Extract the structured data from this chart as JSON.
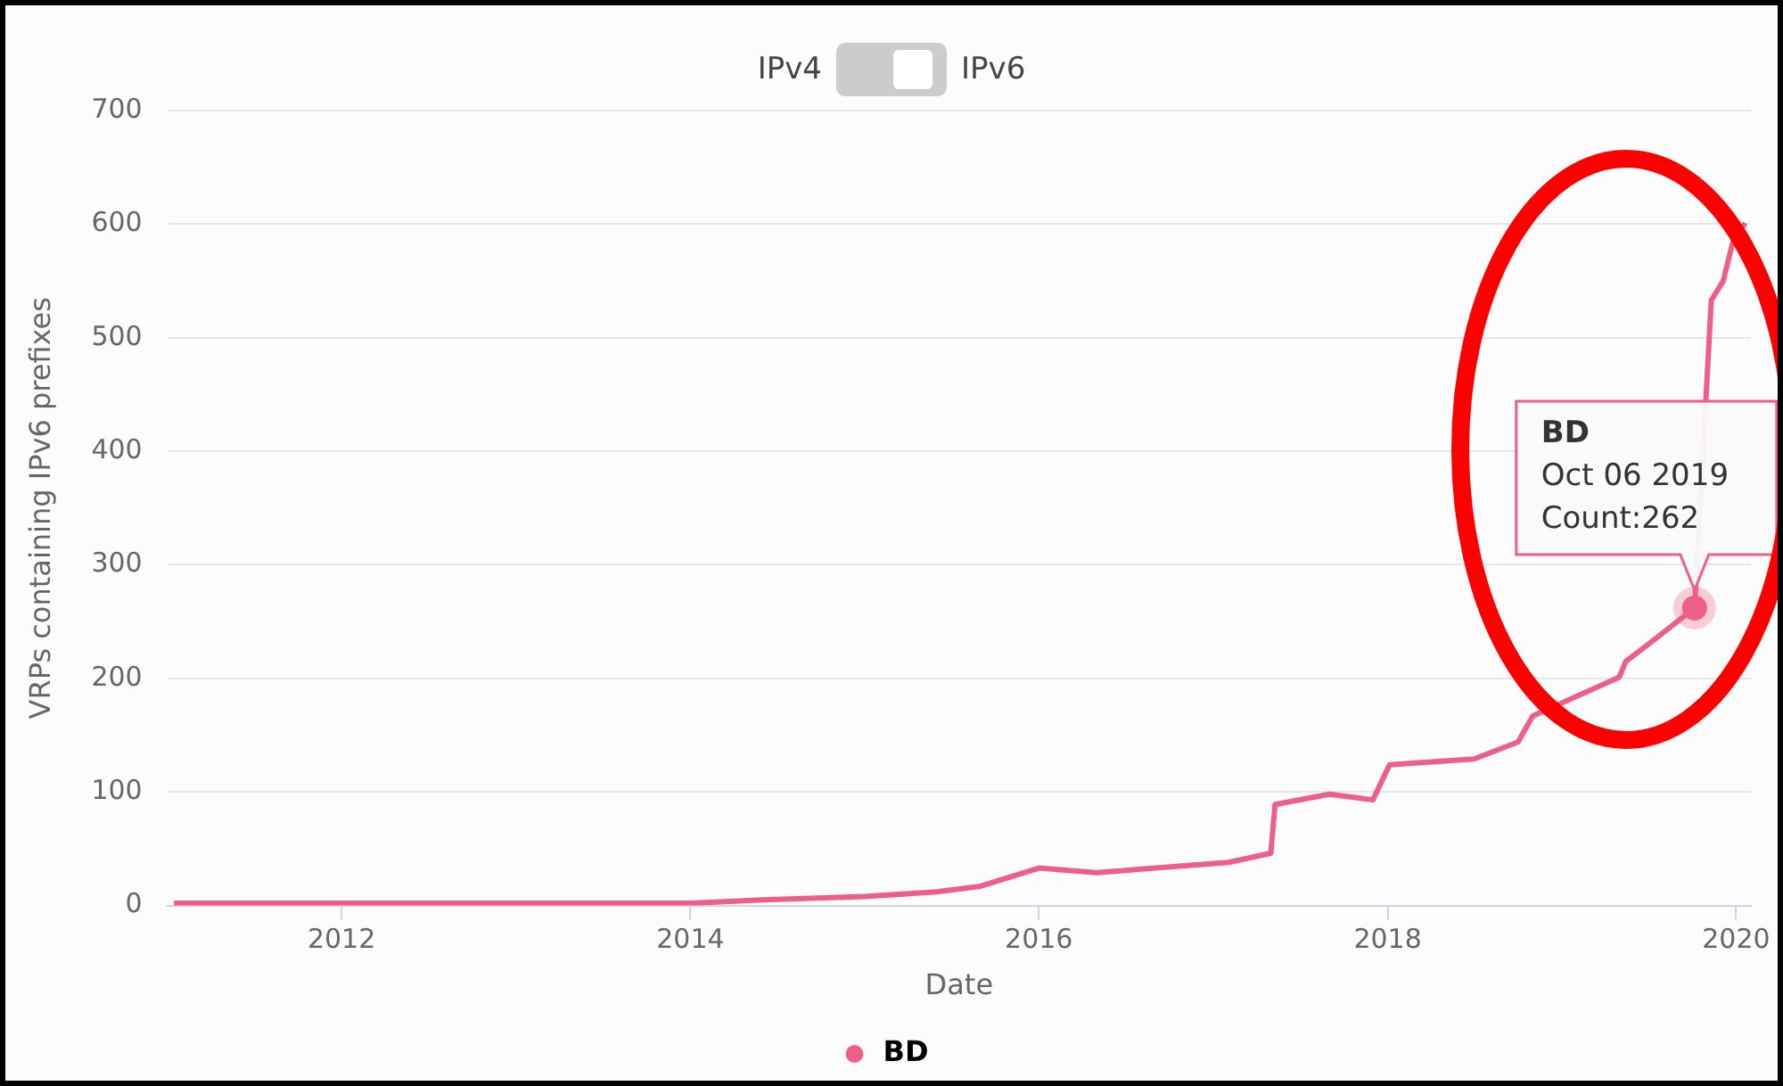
{
  "chart_data": {
    "type": "line",
    "xlabel": "Date",
    "ylabel": "VRPs containing IPv6 prefixes",
    "legend": "bottom",
    "grid": "y",
    "line_style": "solid",
    "annotations": [
      "IPv4",
      "IPv6",
      {
        "text": "BD\nOct 06 2019\nCount:262",
        "x": "2019-10-06",
        "y": 262
      }
    ],
    "xlim": [
      "2011-01-01",
      "2020-02-01"
    ],
    "xticks": [
      {
        "value": "2012-01-01",
        "label": "2012"
      },
      {
        "value": "2014-01-01",
        "label": "2014"
      },
      {
        "value": "2016-01-01",
        "label": "2016"
      },
      {
        "value": "2018-01-01",
        "label": "2018"
      },
      {
        "value": "2020-01-01",
        "label": "2020"
      }
    ],
    "ylim": [
      0,
      700
    ],
    "yticks": [
      0,
      100,
      200,
      300,
      400,
      500,
      600,
      700
    ],
    "x": [
      "2011-01-15",
      "2014-01-01",
      "2014-06-01",
      "2015-01-01",
      "2015-06-01",
      "2015-09-01",
      "2016-01-01",
      "2016-05-01",
      "2017-02-01",
      "2017-05-01",
      "2017-05-10",
      "2017-09-01",
      "2017-12-01",
      "2018-01-05",
      "2018-07-01",
      "2018-10-01",
      "2018-11-01",
      "2019-05-01",
      "2019-05-15",
      "2019-07-01",
      "2019-10-06",
      "2019-11-10",
      "2019-12-05",
      "2019-12-25",
      "2020-01-20"
    ],
    "series": [
      {
        "name": "BD",
        "color": "#ed5f86",
        "values": [
          2,
          2,
          5,
          8,
          12,
          17,
          33,
          29,
          38,
          46,
          89,
          98,
          93,
          124,
          129,
          144,
          167,
          201,
          215,
          230,
          262,
          533,
          550,
          584,
          601
        ]
      }
    ]
  }
}
